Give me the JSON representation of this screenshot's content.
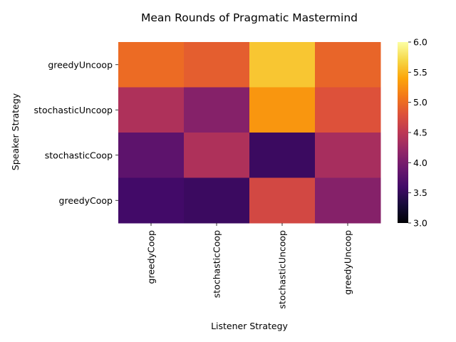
{
  "chart_data": {
    "type": "heatmap",
    "title": "Mean Rounds of Pragmatic Mastermind",
    "xlabel": "Listener Strategy",
    "ylabel": "Speaker Strategy",
    "x_categories": [
      "greedyCoop",
      "stochasticCoop",
      "stochasticUncoop",
      "greedyUncoop"
    ],
    "y_categories": [
      "greedyUncoop",
      "stochasticUncoop",
      "stochasticCoop",
      "greedyCoop"
    ],
    "values": [
      [
        5.0,
        4.9,
        5.6,
        4.95
      ],
      [
        4.4,
        4.1,
        5.3,
        4.8
      ],
      [
        3.8,
        4.4,
        3.55,
        4.35
      ],
      [
        3.6,
        3.55,
        4.7,
        4.1
      ]
    ],
    "colorscale": "inferno",
    "vmin": 3.0,
    "vmax": 6.0,
    "colorbar_ticks": [
      "3.0",
      "3.5",
      "4.0",
      "4.5",
      "5.0",
      "5.5",
      "6.0"
    ]
  }
}
